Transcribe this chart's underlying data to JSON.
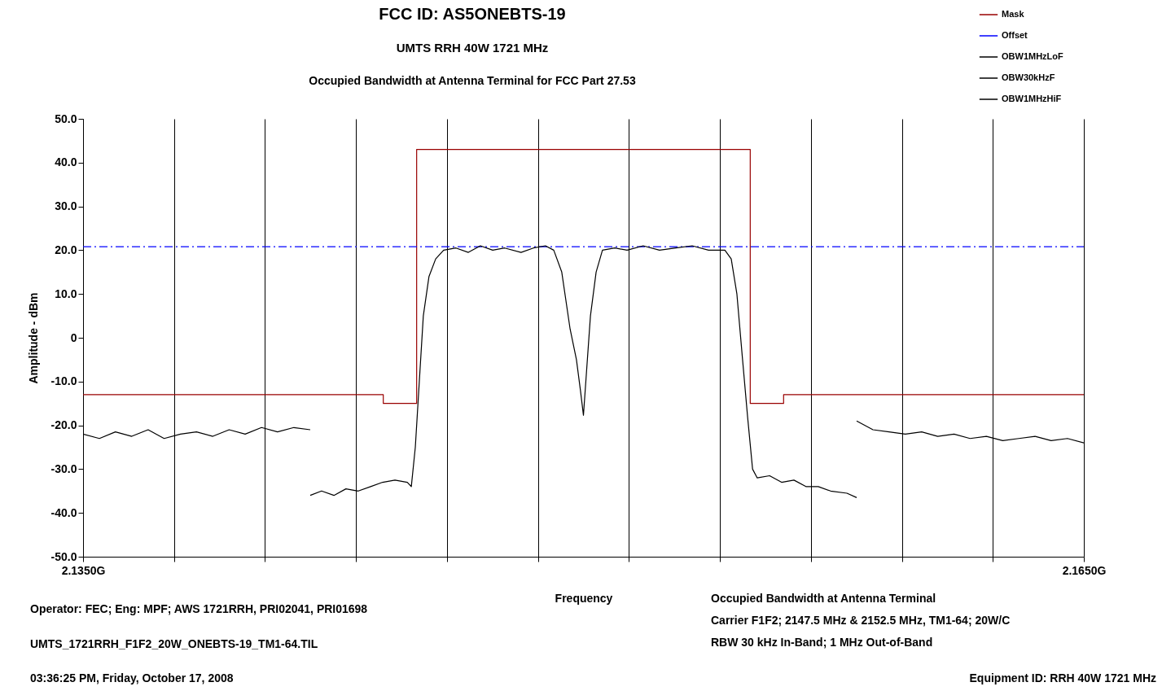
{
  "chart_data": {
    "type": "line",
    "title": "FCC ID: AS5ONEBTS-19",
    "subtitle": "UMTS RRH 40W 1721 MHz",
    "xlabel": "Frequency",
    "ylabel": "Amplitude  -  dBm",
    "annotations": [
      "Occupied Bandwidth at Antenna Terminal for FCC Part 27.53",
      "Operator: FEC; Eng: MPF; AWS 1721RRH, PRI02041, PRI01698",
      "UMTS_1721RRH_F1F2_20W_ONEBTS-19_TM1-64.TIL",
      "03:36:25 PM, Friday, October 17, 2008",
      "Occupied Bandwidth at Antenna Terminal",
      "Carrier F1F2;  2147.5 MHz & 2152.5 MHz, TM1-64; 20W/C",
      "RBW 30 kHz In-Band; 1 MHz Out-of-Band",
      "Equipment ID: RRH 40W 1721 MHz"
    ],
    "xlim": [
      2.135,
      2.165
    ],
    "xticks": [
      {
        "value": 2.135,
        "label": "2.1350G"
      },
      {
        "value": 2.13773,
        "label": null
      },
      {
        "value": 2.14045,
        "label": null
      },
      {
        "value": 2.14318,
        "label": null
      },
      {
        "value": 2.14591,
        "label": null
      },
      {
        "value": 2.14864,
        "label": null
      },
      {
        "value": 2.15136,
        "label": null
      },
      {
        "value": 2.15409,
        "label": null
      },
      {
        "value": 2.15682,
        "label": null
      },
      {
        "value": 2.15955,
        "label": null
      },
      {
        "value": 2.16227,
        "label": null
      },
      {
        "value": 2.165,
        "label": "2.1650G"
      }
    ],
    "ylim": [
      -50,
      50
    ],
    "yticks": [
      {
        "value": -50,
        "label": "-50.0"
      },
      {
        "value": -40,
        "label": "-40.0"
      },
      {
        "value": -30,
        "label": "-30.0"
      },
      {
        "value": -20,
        "label": "-20.0"
      },
      {
        "value": -10,
        "label": "-10.0"
      },
      0,
      {
        "value": 10,
        "label": "10.0"
      },
      {
        "value": 20,
        "label": "20.0"
      },
      {
        "value": 30,
        "label": "30.0"
      },
      {
        "value": 40,
        "label": "40.0"
      },
      {
        "value": 50,
        "label": "50.0"
      }
    ],
    "grid": "x",
    "legend": "top right",
    "series": [
      {
        "name": "Mask",
        "type": "step",
        "color": "#990000",
        "x": [
          2.135,
          2.144,
          2.145,
          2.155,
          2.156,
          2.165
        ],
        "values": [
          -13,
          -15,
          43,
          -15,
          -13,
          -13
        ]
      },
      {
        "name": "Offset",
        "color": "#0000ff",
        "line_style": "dashed",
        "x": [
          2.135,
          2.165
        ],
        "values": [
          20.8,
          20.8
        ]
      },
      {
        "name": "OBW1MHzLoF",
        "color": "#000000",
        "x": [
          2.135,
          2.13549,
          2.13597,
          2.13646,
          2.13695,
          2.13743,
          2.13792,
          2.1384,
          2.13889,
          2.13938,
          2.13986,
          2.14035,
          2.14083,
          2.14132,
          2.14181
        ],
        "values": [
          -22,
          -23,
          -21.5,
          -22.5,
          -21,
          -23,
          -22,
          -21.5,
          -22.5,
          -21,
          -22,
          -20.5,
          -21.5,
          -20.5,
          -21
        ]
      },
      {
        "name": "OBW30kHzF",
        "color": "#000000",
        "x": [
          2.14181,
          2.14215,
          2.14252,
          2.14288,
          2.14325,
          2.14362,
          2.14398,
          2.14435,
          2.14472,
          2.14484,
          2.14496,
          2.14508,
          2.1452,
          2.14537,
          2.14557,
          2.14581,
          2.14618,
          2.14655,
          2.14691,
          2.14728,
          2.14764,
          2.14813,
          2.1485,
          2.14886,
          2.14911,
          2.14935,
          2.1496,
          2.14979,
          2.14991,
          2.15,
          2.15009,
          2.15021,
          2.15038,
          2.15057,
          2.15094,
          2.15131,
          2.15179,
          2.15228,
          2.15277,
          2.15326,
          2.15375,
          2.15424,
          2.15443,
          2.1546,
          2.15477,
          2.15492,
          2.15507,
          2.15521,
          2.15558,
          2.15594,
          2.15631,
          2.15668,
          2.15704,
          2.15741,
          2.1579,
          2.15819
        ],
        "values": [
          -36,
          -35,
          -36,
          -34.5,
          -35,
          -34,
          -33,
          -32.5,
          -33,
          -34,
          -25,
          -10,
          5,
          14,
          18,
          20,
          20.5,
          19.5,
          21,
          20,
          20.5,
          19.5,
          20.5,
          21,
          20,
          15,
          2,
          -5,
          -12,
          -17.7,
          -8,
          5,
          15,
          20,
          20.5,
          20,
          21,
          20,
          20.5,
          21,
          20,
          20,
          18,
          10,
          -5,
          -18,
          -30,
          -32,
          -31.5,
          -33,
          -32.5,
          -34,
          -34,
          -35,
          -35.5,
          -36.5
        ]
      },
      {
        "name": "OBW1MHzHiF",
        "color": "#000000",
        "x": [
          2.15819,
          2.15868,
          2.15916,
          2.15965,
          2.16014,
          2.16062,
          2.16111,
          2.16159,
          2.16208,
          2.16257,
          2.16305,
          2.16354,
          2.16402,
          2.16451,
          2.165
        ],
        "values": [
          -19,
          -21,
          -21.5,
          -22,
          -21.5,
          -22.5,
          -22,
          -23,
          -22.5,
          -23.5,
          -23,
          -22.5,
          -23.5,
          -23,
          -24
        ]
      }
    ]
  }
}
